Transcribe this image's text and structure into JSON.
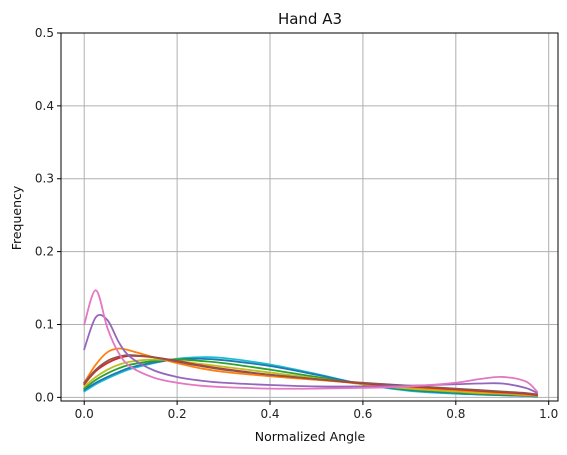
{
  "chart_data": {
    "type": "line",
    "title": "Hand A3",
    "xlabel": "Normalized Angle",
    "ylabel": "Frequency",
    "xlim": [
      -0.05,
      1.02
    ],
    "ylim": [
      -0.005,
      0.5
    ],
    "xticks": [
      0.0,
      0.2,
      0.4,
      0.6,
      0.8,
      1.0
    ],
    "xtick_labels": [
      "0.0",
      "0.2",
      "0.4",
      "0.6",
      "0.8",
      "1.0"
    ],
    "yticks": [
      0.0,
      0.1,
      0.2,
      0.3,
      0.4,
      0.5
    ],
    "ytick_labels": [
      "0.0",
      "0.1",
      "0.2",
      "0.3",
      "0.4",
      "0.5"
    ],
    "grid": true,
    "legend": "none",
    "x": [
      0.0,
      0.025,
      0.05,
      0.075,
      0.1,
      0.15,
      0.2,
      0.25,
      0.3,
      0.4,
      0.5,
      0.6,
      0.7,
      0.8,
      0.85,
      0.9,
      0.95,
      0.975
    ],
    "series": [
      {
        "color": "#17becf",
        "values": [
          0.008,
          0.018,
          0.026,
          0.033,
          0.039,
          0.047,
          0.053,
          0.055,
          0.054,
          0.045,
          0.032,
          0.018,
          0.009,
          0.005,
          0.004,
          0.003,
          0.002,
          0.001
        ]
      },
      {
        "color": "#1f77b4",
        "values": [
          0.01,
          0.02,
          0.028,
          0.035,
          0.041,
          0.048,
          0.052,
          0.053,
          0.051,
          0.043,
          0.031,
          0.018,
          0.01,
          0.006,
          0.004,
          0.003,
          0.002,
          0.001
        ]
      },
      {
        "color": "#2ca02c",
        "values": [
          0.012,
          0.024,
          0.033,
          0.04,
          0.045,
          0.05,
          0.052,
          0.05,
          0.047,
          0.038,
          0.028,
          0.018,
          0.011,
          0.007,
          0.005,
          0.004,
          0.003,
          0.002
        ]
      },
      {
        "color": "#bcbd22",
        "values": [
          0.015,
          0.028,
          0.038,
          0.045,
          0.049,
          0.052,
          0.05,
          0.046,
          0.042,
          0.034,
          0.026,
          0.018,
          0.012,
          0.008,
          0.006,
          0.005,
          0.003,
          0.002
        ]
      },
      {
        "color": "#ff7f0e",
        "values": [
          0.02,
          0.045,
          0.062,
          0.067,
          0.064,
          0.055,
          0.047,
          0.04,
          0.035,
          0.029,
          0.024,
          0.019,
          0.014,
          0.01,
          0.008,
          0.006,
          0.004,
          0.003
        ]
      },
      {
        "color": "#d62728",
        "values": [
          0.018,
          0.036,
          0.047,
          0.054,
          0.057,
          0.055,
          0.05,
          0.044,
          0.039,
          0.031,
          0.025,
          0.019,
          0.015,
          0.011,
          0.009,
          0.007,
          0.005,
          0.003
        ]
      },
      {
        "color": "#8c564b",
        "values": [
          0.02,
          0.038,
          0.05,
          0.056,
          0.058,
          0.055,
          0.049,
          0.043,
          0.038,
          0.031,
          0.025,
          0.02,
          0.016,
          0.012,
          0.01,
          0.008,
          0.006,
          0.004
        ]
      },
      {
        "color": "#9467bd",
        "values": [
          0.066,
          0.11,
          0.106,
          0.075,
          0.055,
          0.037,
          0.028,
          0.023,
          0.02,
          0.017,
          0.015,
          0.015,
          0.016,
          0.018,
          0.019,
          0.019,
          0.013,
          0.006
        ]
      },
      {
        "color": "#e377c2",
        "values": [
          0.1,
          0.147,
          0.095,
          0.06,
          0.042,
          0.027,
          0.02,
          0.016,
          0.014,
          0.012,
          0.012,
          0.013,
          0.015,
          0.02,
          0.025,
          0.028,
          0.022,
          0.008
        ]
      }
    ]
  }
}
